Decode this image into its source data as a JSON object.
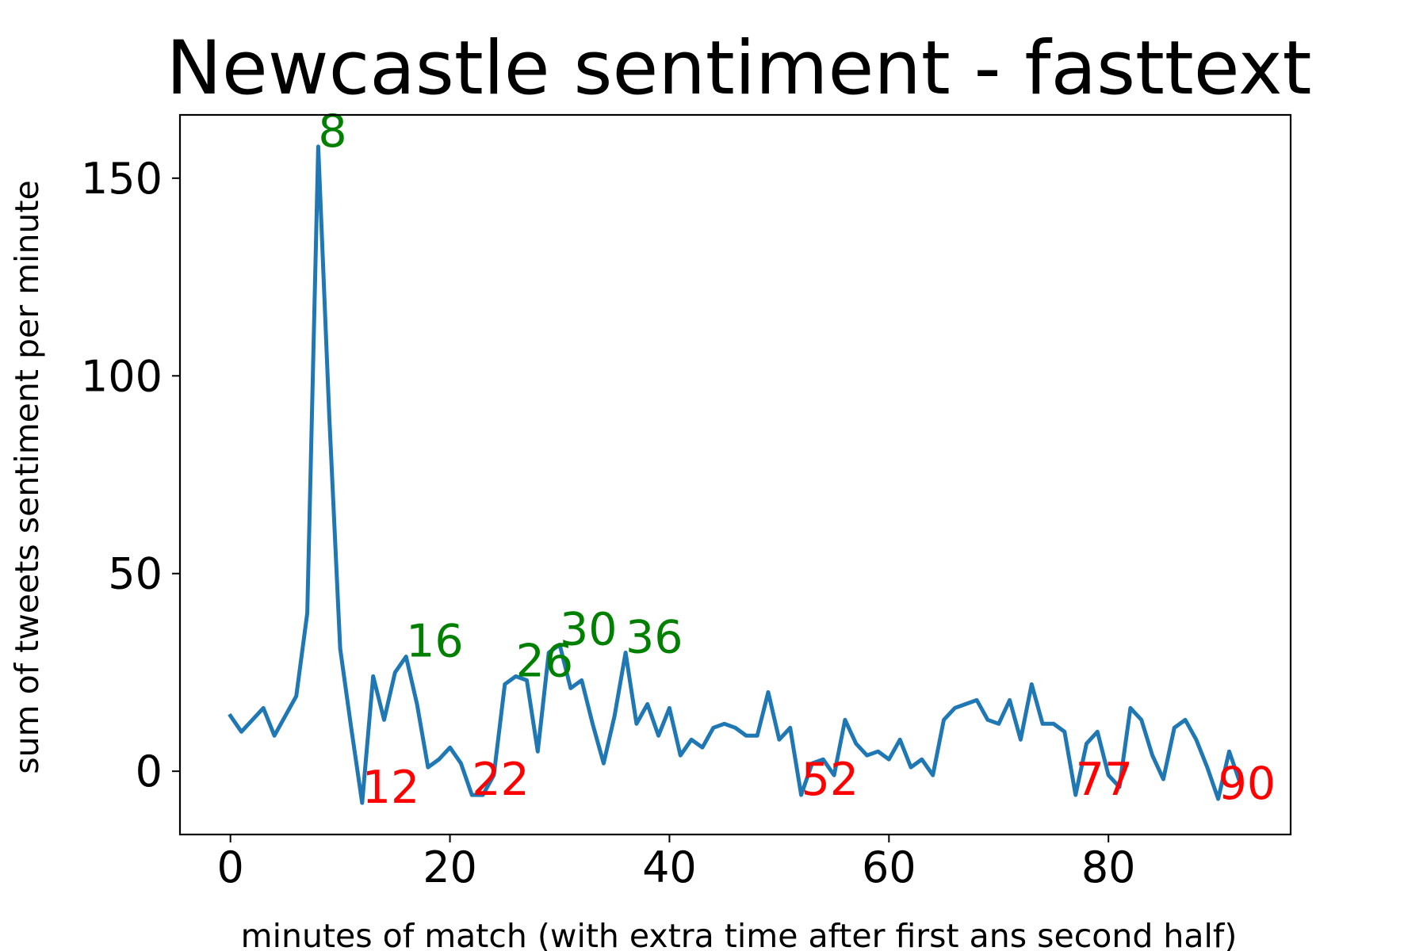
{
  "chart_data": {
    "type": "line",
    "title": "Newcastle sentiment - fasttext",
    "xlabel": "minutes of match (with extra time after first ans second half)",
    "ylabel": "sum of tweets sentiment per minute",
    "xlim": [
      -4.6,
      96.6
    ],
    "ylim": [
      -16,
      166
    ],
    "xticks": [
      0,
      20,
      40,
      60,
      80
    ],
    "yticks": [
      0,
      50,
      100,
      150
    ],
    "grid": false,
    "legend": "none",
    "series": [
      {
        "color": "#1f77b4",
        "x": [
          0,
          1,
          2,
          3,
          4,
          5,
          6,
          7,
          8,
          9,
          10,
          11,
          12,
          13,
          14,
          15,
          16,
          17,
          18,
          19,
          20,
          21,
          22,
          23,
          24,
          25,
          26,
          27,
          28,
          29,
          30,
          31,
          32,
          33,
          34,
          35,
          36,
          37,
          38,
          39,
          40,
          41,
          42,
          43,
          44,
          45,
          46,
          47,
          48,
          49,
          50,
          51,
          52,
          53,
          54,
          55,
          56,
          57,
          58,
          59,
          60,
          61,
          62,
          63,
          64,
          65,
          66,
          67,
          68,
          69,
          70,
          71,
          72,
          73,
          74,
          75,
          76,
          77,
          78,
          79,
          80,
          81,
          82,
          83,
          84,
          85,
          86,
          87,
          88,
          89,
          90,
          91,
          92
        ],
        "y": [
          14,
          10,
          13,
          16,
          9,
          14,
          19,
          40,
          158,
          90,
          31,
          11,
          -8,
          24,
          13,
          25,
          29,
          17,
          1,
          3,
          6,
          2,
          -6,
          -6,
          -1,
          22,
          24,
          23,
          5,
          30,
          32,
          21,
          23,
          12,
          2,
          14,
          30,
          12,
          17,
          9,
          16,
          4,
          8,
          6,
          11,
          12,
          11,
          9,
          9,
          20,
          8,
          11,
          -6,
          2,
          3,
          -1,
          13,
          7,
          4,
          5,
          3,
          8,
          1,
          3,
          -1,
          13,
          16,
          17,
          18,
          13,
          12,
          18,
          8,
          22,
          12,
          12,
          10,
          -6,
          7,
          10,
          -1,
          -4,
          16,
          13,
          4,
          -2,
          11,
          13,
          8,
          1,
          -7,
          5,
          -3
        ]
      }
    ],
    "annotations": [
      {
        "text": "8",
        "x": 8,
        "y": 158,
        "color": "#008000"
      },
      {
        "text": "12",
        "x": 12,
        "y": -8,
        "color": "#ff0000"
      },
      {
        "text": "16",
        "x": 16,
        "y": 29,
        "color": "#008000"
      },
      {
        "text": "22",
        "x": 22,
        "y": -6,
        "color": "#ff0000"
      },
      {
        "text": "26",
        "x": 26,
        "y": 24,
        "color": "#008000"
      },
      {
        "text": "30",
        "x": 30,
        "y": 32,
        "color": "#008000"
      },
      {
        "text": "36",
        "x": 36,
        "y": 30,
        "color": "#008000"
      },
      {
        "text": "52",
        "x": 52,
        "y": -6,
        "color": "#ff0000"
      },
      {
        "text": "77",
        "x": 77,
        "y": -6,
        "color": "#ff0000"
      },
      {
        "text": "90",
        "x": 90,
        "y": -7,
        "color": "#ff0000"
      }
    ]
  }
}
